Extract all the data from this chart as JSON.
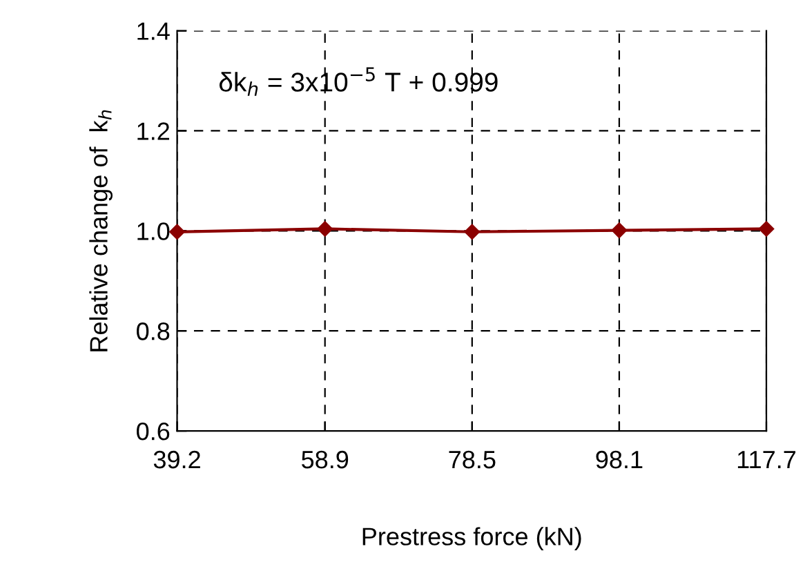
{
  "chart_data": {
    "type": "line",
    "xlabel": "Prestress force (kN)",
    "ylabel": "Relative change of  k$_{h}$",
    "x": [
      39.2,
      58.9,
      78.5,
      98.1,
      117.7
    ],
    "series": [
      {
        "color": "#8b0000",
        "values": [
          0.998,
          1.004,
          0.998,
          1.001,
          1.004
        ]
      }
    ],
    "xlim": [
      39.2,
      117.7
    ],
    "xticks": [
      39.2,
      58.9,
      78.5,
      98.1,
      117.7
    ],
    "ylim": [
      0.6,
      1.4
    ],
    "yticks": [
      0.6,
      0.8,
      {
        "value": 1,
        "label": "1.0"
      },
      1.2,
      1.4
    ],
    "grid": true,
    "marker": "diamond",
    "line_style": "solid",
    "legend": false,
    "annotations": [
      "δk$_{h}$ = 3x10$^{−5}$ T + 0.999"
    ]
  }
}
